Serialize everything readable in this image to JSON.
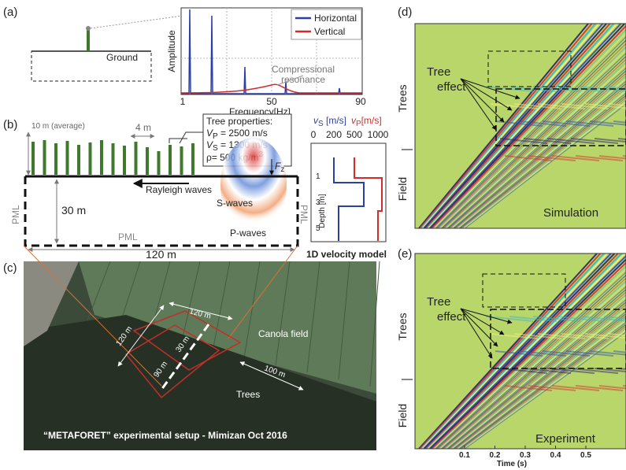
{
  "panels": {
    "a": {
      "label": "(a)",
      "ground": "Ground",
      "legend": [
        "Horizontal",
        "Vertical"
      ],
      "y_label": "Amplitude",
      "x_label": "Frequency[Hz]",
      "x_ticks": [
        "1",
        "50",
        "90"
      ],
      "annotation": [
        "Compressional",
        "resonance"
      ]
    },
    "b": {
      "label": "(b)",
      "tree_height": "10 m (average)",
      "spacing": "4 m",
      "properties_title": "Tree properties:",
      "properties": [
        {
          "symbol": "V",
          "sub": "P",
          "text": " = 2500 m/s"
        },
        {
          "symbol": "V",
          "sub": "S",
          "text": " = 1300 m/s"
        },
        {
          "text": "ρ=  500 kg/m",
          "sup": "3"
        }
      ],
      "force": {
        "symbol": "F",
        "sub": "z"
      },
      "rayleigh": "Rayleigh waves",
      "s_waves": "S-waves",
      "p_waves": "P-waves",
      "depth": "30 m",
      "width": "120 m",
      "pml": [
        "PML",
        "PML",
        "PML"
      ],
      "velocity_model": {
        "vs": {
          "symbol": "v",
          "sub": "S",
          "unit": " [m/s]"
        },
        "vp": {
          "symbol": "v",
          "sub": "P",
          "unit": "[m/s]"
        },
        "x_ticks": [
          "0",
          "200",
          "500",
          "1000"
        ],
        "y_label": "Depth [m]",
        "y_ticks": [
          "1",
          "3",
          "5"
        ],
        "title": "1D velocity model"
      }
    },
    "c": {
      "label": "(c)",
      "dims": [
        "120 m",
        "120 m",
        "30 m",
        "90 m",
        "100 m"
      ],
      "canola": "Canola field",
      "trees": "Trees",
      "caption": "“METAFORET” experimental setup - Mimizan Oct 2016"
    },
    "d": {
      "label": "(d)",
      "trees": "Trees",
      "field": "Field",
      "tree_effect": [
        "Tree",
        "effect"
      ],
      "name": "Simulation"
    },
    "e": {
      "label": "(e)",
      "trees": "Trees",
      "field": "Field",
      "tree_effect": [
        "Tree",
        "effect"
      ],
      "name": "Experiment",
      "x_ticks": [
        "0.1",
        "0.2",
        "0.3",
        "0.4",
        "0.5"
      ],
      "x_label": "Time (s)"
    }
  }
}
